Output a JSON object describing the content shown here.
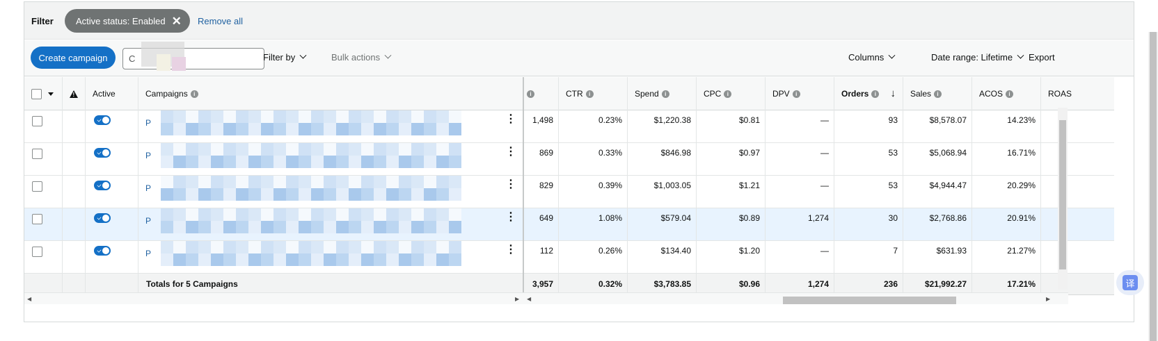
{
  "filter": {
    "label": "Filter",
    "chip_label": "Active status: Enabled",
    "chip_close": "✕",
    "remove_all": "Remove all"
  },
  "toolbar": {
    "create_campaign": "Create campaign",
    "search_placeholder": "C",
    "filter_by": "Filter by",
    "bulk_actions": "Bulk actions",
    "columns": "Columns",
    "date_range": "Date range: Lifetime",
    "export": "Export"
  },
  "columns": {
    "active": "Active",
    "campaigns": "Campaigns",
    "ctr": "CTR",
    "spend": "Spend",
    "cpc": "CPC",
    "dpv": "DPV",
    "orders": "Orders",
    "sales": "Sales",
    "acos": "ACOS",
    "roas": "ROAS"
  },
  "rows": [
    {
      "name": "P",
      "clicks": "1,498",
      "ctr": "0.23%",
      "spend": "$1,220.38",
      "cpc": "$0.81",
      "dpv": "—",
      "orders": "93",
      "sales": "$8,578.07",
      "acos": "14.23%"
    },
    {
      "name": "P",
      "clicks": "869",
      "ctr": "0.33%",
      "spend": "$846.98",
      "cpc": "$0.97",
      "dpv": "—",
      "orders": "53",
      "sales": "$5,068.94",
      "acos": "16.71%"
    },
    {
      "name": "P",
      "clicks": "829",
      "ctr": "0.39%",
      "spend": "$1,003.05",
      "cpc": "$1.21",
      "dpv": "—",
      "orders": "53",
      "sales": "$4,944.47",
      "acos": "20.29%"
    },
    {
      "name": "P",
      "clicks": "649",
      "ctr": "1.08%",
      "spend": "$579.04",
      "cpc": "$0.89",
      "dpv": "1,274",
      "orders": "30",
      "sales": "$2,768.86",
      "acos": "20.91%"
    },
    {
      "name": "P",
      "clicks": "112",
      "ctr": "0.26%",
      "spend": "$134.40",
      "cpc": "$1.20",
      "dpv": "—",
      "orders": "7",
      "sales": "$631.93",
      "acos": "21.27%"
    }
  ],
  "totals": {
    "label": "Totals for 5 Campaigns",
    "clicks": "3,957",
    "ctr": "0.32%",
    "spend": "$3,783.85",
    "cpc": "$0.96",
    "dpv": "1,274",
    "orders": "236",
    "sales": "$21,992.27",
    "acos": "17.21%"
  },
  "translate_badge": "译",
  "colors": {
    "primary": "#1470c6",
    "link": "#2162a1",
    "chip": "#6f7373",
    "highlight_row": "#e8f3fe"
  }
}
